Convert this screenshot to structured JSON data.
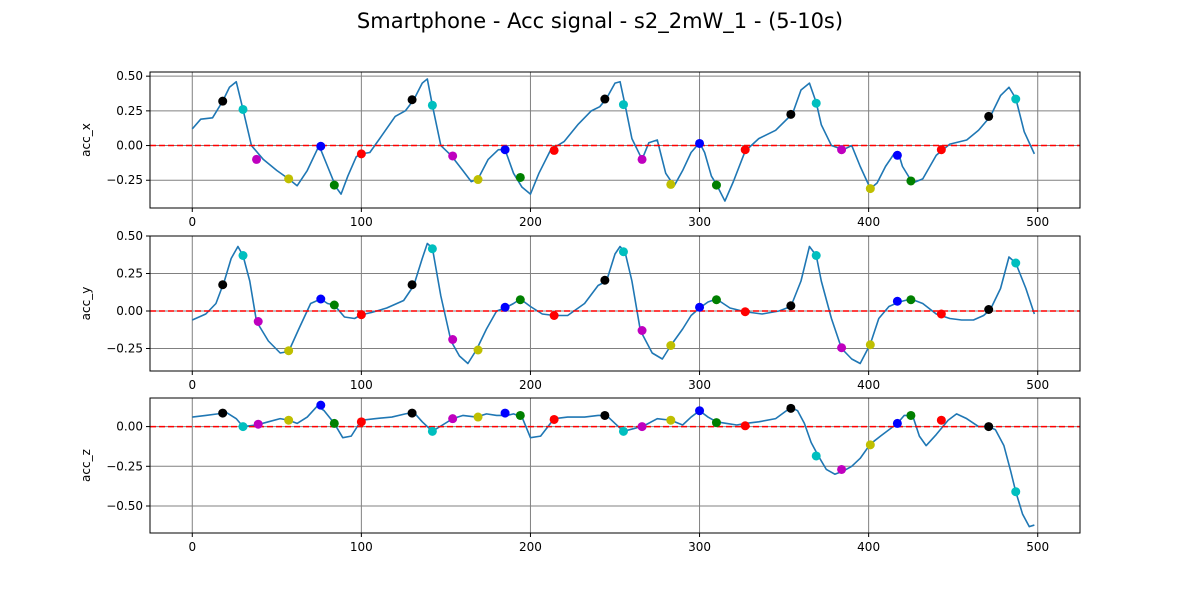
{
  "title": "Smartphone - Acc signal - s2_2mW_1 - (5-10s)",
  "colors": {
    "line": "#1f77b4",
    "zero_line": "#ff0000",
    "grid": "#808080",
    "marker_cycle": [
      "#000000",
      "#00bfbf",
      "#bf00bf",
      "#bfbf00",
      "#0000ff",
      "#008000",
      "#ff0000"
    ]
  },
  "chart_data": [
    {
      "type": "line",
      "ylabel": "acc_x",
      "xlim": [
        -25,
        525
      ],
      "ylim": [
        -0.45,
        0.53
      ],
      "xticks": [
        0,
        100,
        200,
        300,
        400,
        500
      ],
      "yticks": [
        -0.25,
        0.0,
        0.25,
        0.5
      ],
      "ytick_labels": [
        "−0.25",
        "0.00",
        "0.25",
        "0.50"
      ],
      "zero_line": 0,
      "grid": true,
      "series": [
        {
          "x": [
            0,
            5,
            12,
            18,
            22,
            26,
            30,
            35,
            42,
            50,
            57,
            62,
            68,
            75,
            80,
            85,
            88,
            92,
            97,
            100,
            105,
            112,
            120,
            126,
            131,
            136,
            139,
            142,
            147,
            153,
            160,
            165,
            169,
            175,
            181,
            185,
            190,
            195,
            200,
            205,
            212,
            220,
            228,
            236,
            241,
            245,
            250,
            253,
            256,
            260,
            266,
            270,
            275,
            280,
            285,
            290,
            295,
            300,
            303,
            307,
            310,
            315,
            320,
            327,
            335,
            345,
            355,
            360,
            365,
            369,
            372,
            378,
            385,
            390,
            395,
            401,
            405,
            410,
            415,
            418,
            420,
            426,
            432,
            440,
            448,
            458,
            465,
            472,
            478,
            483,
            487,
            492,
            498
          ],
          "y": [
            0.12,
            0.19,
            0.2,
            0.32,
            0.42,
            0.46,
            0.26,
            0.0,
            -0.1,
            -0.18,
            -0.24,
            -0.29,
            -0.18,
            0.0,
            -0.15,
            -0.3,
            -0.35,
            -0.22,
            -0.08,
            -0.06,
            -0.05,
            0.07,
            0.21,
            0.25,
            0.33,
            0.45,
            0.48,
            0.29,
            0.0,
            -0.07,
            -0.18,
            -0.26,
            -0.24,
            -0.1,
            -0.03,
            -0.03,
            -0.2,
            -0.3,
            -0.35,
            -0.2,
            -0.03,
            0.03,
            0.15,
            0.25,
            0.28,
            0.34,
            0.45,
            0.46,
            0.29,
            0.05,
            -0.1,
            0.02,
            0.04,
            -0.2,
            -0.29,
            -0.18,
            -0.05,
            0.02,
            -0.05,
            -0.22,
            -0.28,
            -0.4,
            -0.26,
            -0.04,
            0.05,
            0.11,
            0.23,
            0.4,
            0.45,
            0.31,
            0.15,
            0.0,
            -0.03,
            0.0,
            -0.15,
            -0.31,
            -0.27,
            -0.15,
            -0.06,
            -0.07,
            -0.15,
            -0.27,
            -0.24,
            -0.07,
            0.01,
            0.04,
            0.11,
            0.21,
            0.36,
            0.42,
            0.34,
            0.1,
            -0.06
          ]
        }
      ],
      "markers": [
        {
          "x": 18,
          "y": 0.32,
          "c": 0
        },
        {
          "x": 30,
          "y": 0.26,
          "c": 1
        },
        {
          "x": 38,
          "y": -0.1,
          "c": 2
        },
        {
          "x": 57,
          "y": -0.24,
          "c": 3
        },
        {
          "x": 76,
          "y": -0.005,
          "c": 4
        },
        {
          "x": 84,
          "y": -0.285,
          "c": 5
        },
        {
          "x": 100,
          "y": -0.06,
          "c": 6
        },
        {
          "x": 130,
          "y": 0.33,
          "c": 0
        },
        {
          "x": 142,
          "y": 0.29,
          "c": 1
        },
        {
          "x": 154,
          "y": -0.075,
          "c": 2
        },
        {
          "x": 169,
          "y": -0.245,
          "c": 3
        },
        {
          "x": 185,
          "y": -0.03,
          "c": 4
        },
        {
          "x": 194,
          "y": -0.23,
          "c": 5
        },
        {
          "x": 214,
          "y": -0.035,
          "c": 6
        },
        {
          "x": 244,
          "y": 0.335,
          "c": 0
        },
        {
          "x": 255,
          "y": 0.295,
          "c": 1
        },
        {
          "x": 266,
          "y": -0.1,
          "c": 2
        },
        {
          "x": 283,
          "y": -0.28,
          "c": 3
        },
        {
          "x": 300,
          "y": 0.015,
          "c": 4
        },
        {
          "x": 310,
          "y": -0.285,
          "c": 5
        },
        {
          "x": 327,
          "y": -0.03,
          "c": 6
        },
        {
          "x": 354,
          "y": 0.225,
          "c": 0
        },
        {
          "x": 369,
          "y": 0.305,
          "c": 1
        },
        {
          "x": 384,
          "y": -0.03,
          "c": 2
        },
        {
          "x": 401,
          "y": -0.31,
          "c": 3
        },
        {
          "x": 417,
          "y": -0.07,
          "c": 4
        },
        {
          "x": 425,
          "y": -0.255,
          "c": 5
        },
        {
          "x": 443,
          "y": -0.03,
          "c": 6
        },
        {
          "x": 471,
          "y": 0.21,
          "c": 0
        },
        {
          "x": 487,
          "y": 0.335,
          "c": 1
        }
      ]
    },
    {
      "type": "line",
      "ylabel": "acc_y",
      "xlim": [
        -25,
        525
      ],
      "ylim": [
        -0.4,
        0.5
      ],
      "xticks": [
        0,
        100,
        200,
        300,
        400,
        500
      ],
      "yticks": [
        -0.25,
        0.0,
        0.25,
        0.5
      ],
      "ytick_labels": [
        "−0.25",
        "0.00",
        "0.25",
        "0.50"
      ],
      "zero_line": 0,
      "grid": true,
      "series": [
        {
          "x": [
            0,
            8,
            14,
            19,
            23,
            27,
            30,
            34,
            38,
            45,
            52,
            57,
            63,
            70,
            76,
            80,
            84,
            90,
            96,
            100,
            106,
            115,
            125,
            131,
            136,
            139,
            142,
            147,
            153,
            158,
            163,
            168,
            174,
            180,
            185,
            190,
            194,
            200,
            207,
            214,
            222,
            232,
            240,
            245,
            250,
            253,
            256,
            260,
            265,
            272,
            278,
            283,
            290,
            295,
            300,
            305,
            310,
            318,
            327,
            337,
            347,
            354,
            360,
            365,
            369,
            372,
            378,
            384,
            390,
            395,
            401,
            406,
            412,
            418,
            425,
            432,
            440,
            448,
            455,
            462,
            468,
            472,
            478,
            483,
            487,
            493,
            498
          ],
          "y": [
            -0.06,
            -0.02,
            0.05,
            0.2,
            0.35,
            0.43,
            0.37,
            0.2,
            -0.07,
            -0.2,
            -0.28,
            -0.27,
            -0.12,
            0.05,
            0.08,
            0.05,
            0.04,
            -0.04,
            -0.05,
            -0.025,
            -0.01,
            0.02,
            0.07,
            0.17,
            0.35,
            0.45,
            0.42,
            0.1,
            -0.2,
            -0.3,
            -0.35,
            -0.26,
            -0.12,
            0.0,
            0.02,
            0.05,
            0.08,
            0.03,
            -0.02,
            -0.03,
            -0.03,
            0.05,
            0.17,
            0.2,
            0.38,
            0.43,
            0.39,
            0.2,
            -0.13,
            -0.28,
            -0.32,
            -0.23,
            -0.12,
            -0.03,
            0.02,
            0.06,
            0.08,
            0.02,
            -0.005,
            -0.02,
            0.0,
            0.03,
            0.2,
            0.43,
            0.37,
            0.2,
            -0.05,
            -0.25,
            -0.32,
            -0.35,
            -0.22,
            -0.05,
            0.03,
            0.06,
            0.08,
            0.05,
            -0.02,
            -0.05,
            -0.06,
            -0.06,
            -0.03,
            0.01,
            0.15,
            0.36,
            0.32,
            0.15,
            -0.02
          ]
        }
      ],
      "markers": [
        {
          "x": 18,
          "y": 0.175,
          "c": 0
        },
        {
          "x": 30,
          "y": 0.37,
          "c": 1
        },
        {
          "x": 39,
          "y": -0.07,
          "c": 2
        },
        {
          "x": 57,
          "y": -0.265,
          "c": 3
        },
        {
          "x": 76,
          "y": 0.08,
          "c": 4
        },
        {
          "x": 84,
          "y": 0.04,
          "c": 5
        },
        {
          "x": 100,
          "y": -0.025,
          "c": 6
        },
        {
          "x": 130,
          "y": 0.175,
          "c": 0
        },
        {
          "x": 142,
          "y": 0.415,
          "c": 1
        },
        {
          "x": 154,
          "y": -0.19,
          "c": 2
        },
        {
          "x": 169,
          "y": -0.26,
          "c": 3
        },
        {
          "x": 185,
          "y": 0.025,
          "c": 4
        },
        {
          "x": 194,
          "y": 0.075,
          "c": 5
        },
        {
          "x": 214,
          "y": -0.03,
          "c": 6
        },
        {
          "x": 244,
          "y": 0.205,
          "c": 0
        },
        {
          "x": 255,
          "y": 0.395,
          "c": 1
        },
        {
          "x": 266,
          "y": -0.13,
          "c": 2
        },
        {
          "x": 283,
          "y": -0.23,
          "c": 3
        },
        {
          "x": 300,
          "y": 0.025,
          "c": 4
        },
        {
          "x": 310,
          "y": 0.075,
          "c": 5
        },
        {
          "x": 327,
          "y": -0.005,
          "c": 6
        },
        {
          "x": 354,
          "y": 0.035,
          "c": 0
        },
        {
          "x": 369,
          "y": 0.37,
          "c": 1
        },
        {
          "x": 384,
          "y": -0.245,
          "c": 2
        },
        {
          "x": 401,
          "y": -0.225,
          "c": 3
        },
        {
          "x": 417,
          "y": 0.065,
          "c": 4
        },
        {
          "x": 425,
          "y": 0.075,
          "c": 5
        },
        {
          "x": 443,
          "y": -0.02,
          "c": 6
        },
        {
          "x": 471,
          "y": 0.01,
          "c": 0
        },
        {
          "x": 487,
          "y": 0.32,
          "c": 1
        }
      ]
    },
    {
      "type": "line",
      "ylabel": "acc_z",
      "xlim": [
        -25,
        525
      ],
      "ylim": [
        -0.67,
        0.18
      ],
      "xticks": [
        0,
        100,
        200,
        300,
        400,
        500
      ],
      "yticks": [
        -0.5,
        -0.25,
        0.0
      ],
      "ytick_labels": [
        "−0.50",
        "−0.25",
        "0.00"
      ],
      "zero_line": 0,
      "grid": true,
      "series": [
        {
          "x": [
            0,
            8,
            15,
            20,
            26,
            30,
            38,
            45,
            52,
            57,
            62,
            68,
            74,
            78,
            84,
            89,
            94,
            100,
            108,
            118,
            126,
            131,
            136,
            142,
            148,
            154,
            160,
            168,
            174,
            180,
            186,
            190,
            195,
            200,
            206,
            214,
            222,
            232,
            240,
            245,
            250,
            255,
            262,
            268,
            275,
            283,
            290,
            295,
            300,
            305,
            310,
            316,
            322,
            327,
            335,
            345,
            354,
            358,
            362,
            366,
            370,
            375,
            380,
            385,
            390,
            395,
            401,
            407,
            412,
            417,
            421,
            426,
            430,
            434,
            440,
            447,
            452,
            458,
            465,
            471,
            475,
            480,
            484,
            487,
            491,
            495,
            498
          ],
          "y": [
            0.06,
            0.07,
            0.08,
            0.09,
            0.05,
            0.0,
            0.01,
            0.03,
            0.05,
            0.04,
            0.02,
            0.06,
            0.13,
            0.1,
            0.02,
            -0.07,
            -0.06,
            0.04,
            0.05,
            0.06,
            0.08,
            0.09,
            0.03,
            -0.03,
            0.01,
            0.05,
            0.07,
            0.06,
            0.08,
            0.07,
            0.07,
            0.08,
            0.06,
            -0.07,
            -0.06,
            0.05,
            0.06,
            0.06,
            0.07,
            0.07,
            0.02,
            -0.03,
            -0.01,
            0.01,
            0.05,
            0.04,
            0.01,
            0.06,
            0.1,
            0.06,
            0.03,
            0.02,
            0.01,
            0.02,
            0.03,
            0.05,
            0.12,
            0.1,
            0.02,
            -0.1,
            -0.18,
            -0.27,
            -0.3,
            -0.28,
            -0.25,
            -0.2,
            -0.11,
            -0.06,
            -0.02,
            0.02,
            0.07,
            0.07,
            -0.06,
            -0.12,
            -0.05,
            0.04,
            0.08,
            0.05,
            0.0,
            0.0,
            -0.02,
            -0.12,
            -0.28,
            -0.41,
            -0.55,
            -0.63,
            -0.62
          ]
        }
      ],
      "markers": [
        {
          "x": 18,
          "y": 0.085,
          "c": 0
        },
        {
          "x": 30,
          "y": 0.0,
          "c": 1
        },
        {
          "x": 39,
          "y": 0.015,
          "c": 2
        },
        {
          "x": 57,
          "y": 0.04,
          "c": 3
        },
        {
          "x": 76,
          "y": 0.135,
          "c": 4
        },
        {
          "x": 84,
          "y": 0.02,
          "c": 5
        },
        {
          "x": 100,
          "y": 0.03,
          "c": 6
        },
        {
          "x": 130,
          "y": 0.085,
          "c": 0
        },
        {
          "x": 142,
          "y": -0.03,
          "c": 1
        },
        {
          "x": 154,
          "y": 0.05,
          "c": 2
        },
        {
          "x": 169,
          "y": 0.06,
          "c": 3
        },
        {
          "x": 185,
          "y": 0.085,
          "c": 4
        },
        {
          "x": 194,
          "y": 0.07,
          "c": 5
        },
        {
          "x": 214,
          "y": 0.045,
          "c": 6
        },
        {
          "x": 244,
          "y": 0.07,
          "c": 0
        },
        {
          "x": 255,
          "y": -0.03,
          "c": 1
        },
        {
          "x": 266,
          "y": 0.0,
          "c": 2
        },
        {
          "x": 283,
          "y": 0.04,
          "c": 3
        },
        {
          "x": 300,
          "y": 0.1,
          "c": 4
        },
        {
          "x": 310,
          "y": 0.025,
          "c": 5
        },
        {
          "x": 327,
          "y": 0.005,
          "c": 6
        },
        {
          "x": 354,
          "y": 0.115,
          "c": 0
        },
        {
          "x": 369,
          "y": -0.185,
          "c": 1
        },
        {
          "x": 384,
          "y": -0.27,
          "c": 2
        },
        {
          "x": 401,
          "y": -0.115,
          "c": 3
        },
        {
          "x": 417,
          "y": 0.02,
          "c": 4
        },
        {
          "x": 425,
          "y": 0.07,
          "c": 5
        },
        {
          "x": 443,
          "y": 0.04,
          "c": 6
        },
        {
          "x": 471,
          "y": 0.0,
          "c": 0
        },
        {
          "x": 487,
          "y": -0.41,
          "c": 1
        }
      ]
    }
  ]
}
